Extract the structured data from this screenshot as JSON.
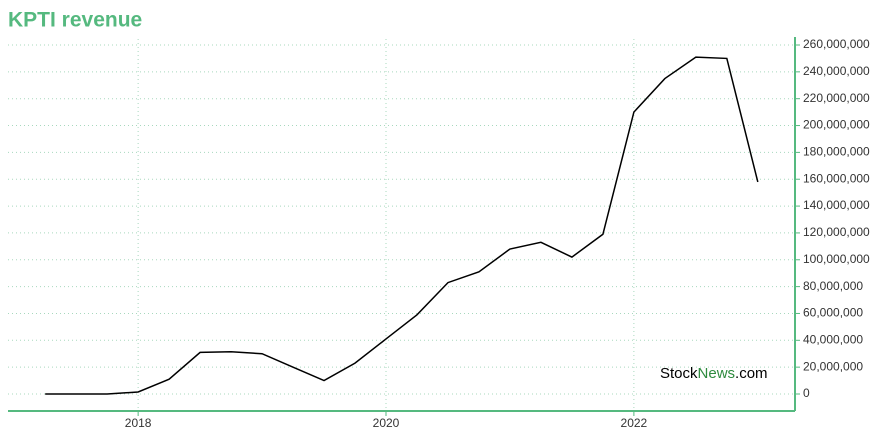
{
  "chart_data": {
    "type": "line",
    "title": "KPTI revenue",
    "watermark": [
      "Stock",
      "News",
      ".com"
    ],
    "x": [
      2017.25,
      2017.5,
      2017.75,
      2018.0,
      2018.25,
      2018.5,
      2018.75,
      2019.0,
      2019.25,
      2019.5,
      2019.75,
      2020.0,
      2020.25,
      2020.5,
      2020.75,
      2021.0,
      2021.25,
      2021.5,
      2021.75,
      2022.0,
      2022.25,
      2022.5,
      2022.75,
      2023.0
    ],
    "series": [
      {
        "color": "#000000",
        "values": [
          0,
          0,
          0,
          1500000,
          11000000,
          31000000,
          31500000,
          30000000,
          20000000,
          10000000,
          23000000,
          41000000,
          59000000,
          83000000,
          91000000,
          108000000,
          113000000,
          102000000,
          119000000,
          210000000,
          235000000,
          251000000,
          250000000,
          158000000
        ]
      }
    ],
    "xlim": [
      2016.95,
      2023.3
    ],
    "xticks": [
      2018,
      2020,
      2022
    ],
    "ylim": [
      0,
      260000000
    ],
    "yticks": [
      0,
      {
        "value": 20000000,
        "label": "20,000,000"
      },
      {
        "value": 40000000,
        "label": "40,000,000"
      },
      {
        "value": 60000000,
        "label": "60,000,000"
      },
      {
        "value": 80000000,
        "label": "80,000,000"
      },
      {
        "value": 100000000,
        "label": "100,000,000"
      },
      {
        "value": 120000000,
        "label": "120,000,000"
      },
      {
        "value": 140000000,
        "label": "140,000,000"
      },
      {
        "value": 160000000,
        "label": "160,000,000"
      },
      {
        "value": 180000000,
        "label": "180,000,000"
      },
      {
        "value": 200000000,
        "label": "200,000,000"
      },
      {
        "value": 220000000,
        "label": "220,000,000"
      },
      {
        "value": 240000000,
        "label": "240,000,000"
      },
      {
        "value": 260000000,
        "label": "260,000,000"
      }
    ],
    "grid": true,
    "axis_color": "#55b97f"
  }
}
